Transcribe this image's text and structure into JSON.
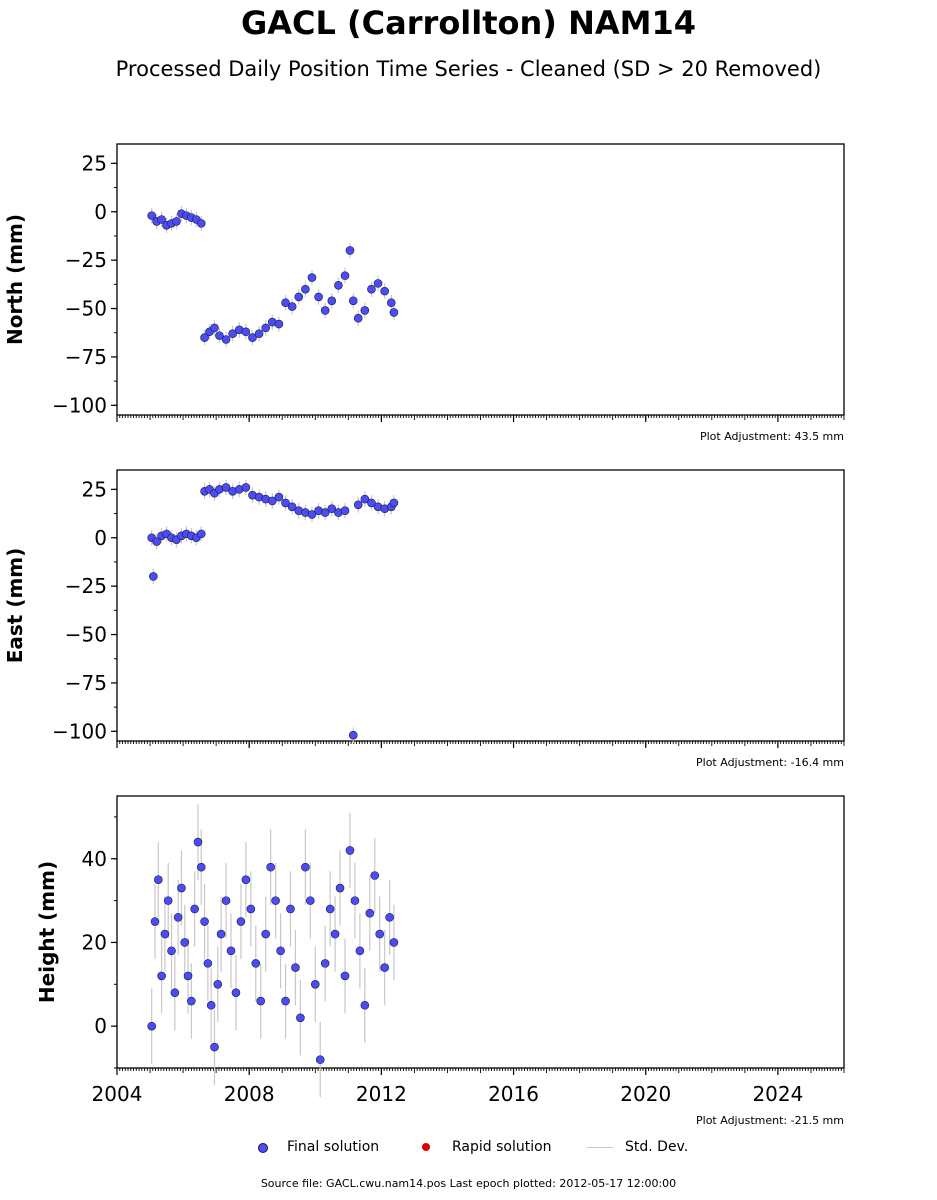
{
  "title": "GACL (Carrollton) NAM14",
  "subtitle": "Processed Daily Position Time Series - Cleaned (SD > 20 Removed)",
  "colors": {
    "final": "#4c4cf5",
    "rapid": "#e00000",
    "stddev": "#c8c8c8",
    "edge": "#1a1a40"
  },
  "legend": {
    "final_label": "Final solution",
    "rapid_label": "Rapid solution",
    "std_label": "Std. Dev."
  },
  "source_text": "Source file: GACL.cwu.nam14.pos  Last epoch plotted: 2012-05-17 12:00:00",
  "chart_data": [
    {
      "type": "scatter",
      "ylabel": "North (mm)",
      "adjustment": "Plot Adjustment: 43.5 mm",
      "xlim": [
        2004,
        2026
      ],
      "ylim": [
        -105,
        35
      ],
      "yticks": [
        25,
        0,
        -25,
        -50,
        -75,
        -100
      ],
      "ytick_labels": [
        "25",
        "0",
        "−25",
        "−50",
        "−75",
        "−100"
      ],
      "xticks": [
        2004,
        2008,
        2012,
        2016,
        2020,
        2024
      ],
      "show_xtick_labels": false,
      "series": [
        {
          "name": "Final solution",
          "x": [
            2005.05,
            2005.2,
            2005.35,
            2005.5,
            2005.65,
            2005.8,
            2005.95,
            2006.1,
            2006.25,
            2006.4,
            2006.55,
            2006.65,
            2006.8,
            2006.95,
            2007.1,
            2007.3,
            2007.5,
            2007.7,
            2007.9,
            2008.1,
            2008.3,
            2008.5,
            2008.7,
            2008.9,
            2009.1,
            2009.3,
            2009.5,
            2009.7,
            2009.9,
            2010.1,
            2010.3,
            2010.5,
            2010.7,
            2010.9,
            2011.05,
            2011.15,
            2011.3,
            2011.5,
            2011.7,
            2011.9,
            2012.1,
            2012.3,
            2012.38
          ],
          "y": [
            -2,
            -5,
            -4,
            -7,
            -6,
            -5,
            -1,
            -2,
            -3,
            -4,
            -6,
            -65,
            -62,
            -60,
            -64,
            -66,
            -63,
            -61,
            -62,
            -65,
            -63,
            -60,
            -57,
            -58,
            -47,
            -49,
            -44,
            -40,
            -34,
            -44,
            -51,
            -46,
            -38,
            -33,
            -20,
            -46,
            -55,
            -51,
            -40,
            -37,
            -41,
            -47,
            -52
          ]
        }
      ]
    },
    {
      "type": "scatter",
      "ylabel": "East (mm)",
      "adjustment": "Plot Adjustment: -16.4 mm",
      "xlim": [
        2004,
        2026
      ],
      "ylim": [
        -105,
        35
      ],
      "yticks": [
        25,
        0,
        -25,
        -50,
        -75,
        -100
      ],
      "ytick_labels": [
        "25",
        "0",
        "−25",
        "−50",
        "−75",
        "−100"
      ],
      "xticks": [
        2004,
        2008,
        2012,
        2016,
        2020,
        2024
      ],
      "show_xtick_labels": false,
      "series": [
        {
          "name": "Final solution",
          "x": [
            2005.05,
            2005.1,
            2005.2,
            2005.35,
            2005.5,
            2005.65,
            2005.8,
            2005.95,
            2006.1,
            2006.25,
            2006.4,
            2006.55,
            2006.65,
            2006.8,
            2006.95,
            2007.1,
            2007.3,
            2007.5,
            2007.7,
            2007.9,
            2008.1,
            2008.3,
            2008.5,
            2008.7,
            2008.9,
            2009.1,
            2009.3,
            2009.5,
            2009.7,
            2009.9,
            2010.1,
            2010.3,
            2010.5,
            2010.7,
            2010.9,
            2011.15,
            2011.3,
            2011.5,
            2011.7,
            2011.9,
            2012.1,
            2012.3,
            2012.38
          ],
          "y": [
            0,
            -20,
            -2,
            1,
            2,
            0,
            -1,
            1,
            2,
            1,
            0,
            2,
            24,
            25,
            23,
            25,
            26,
            24,
            25,
            26,
            22,
            21,
            20,
            19,
            21,
            18,
            16,
            14,
            13,
            12,
            14,
            13,
            15,
            13,
            14,
            -102,
            17,
            20,
            18,
            16,
            15,
            16,
            18
          ]
        }
      ]
    },
    {
      "type": "scatter",
      "ylabel": "Height (mm)",
      "adjustment": "Plot Adjustment: -21.5 mm",
      "xlim": [
        2004,
        2026
      ],
      "ylim": [
        -10,
        55
      ],
      "yticks": [
        40,
        20,
        0
      ],
      "ytick_labels": [
        "40",
        "20",
        "0"
      ],
      "xticks": [
        2004,
        2008,
        2012,
        2016,
        2020,
        2024
      ],
      "xtick_labels": [
        "2004",
        "2008",
        "2012",
        "2016",
        "2020",
        "2024"
      ],
      "show_xtick_labels": true,
      "series": [
        {
          "name": "Final solution",
          "x": [
            2005.05,
            2005.15,
            2005.25,
            2005.35,
            2005.45,
            2005.55,
            2005.65,
            2005.75,
            2005.85,
            2005.95,
            2006.05,
            2006.15,
            2006.25,
            2006.35,
            2006.45,
            2006.55,
            2006.65,
            2006.75,
            2006.85,
            2006.95,
            2007.05,
            2007.15,
            2007.3,
            2007.45,
            2007.6,
            2007.75,
            2007.9,
            2008.05,
            2008.2,
            2008.35,
            2008.5,
            2008.65,
            2008.8,
            2008.95,
            2009.1,
            2009.25,
            2009.4,
            2009.55,
            2009.7,
            2009.85,
            2010.0,
            2010.15,
            2010.3,
            2010.45,
            2010.6,
            2010.75,
            2010.9,
            2011.05,
            2011.2,
            2011.35,
            2011.5,
            2011.65,
            2011.8,
            2011.95,
            2012.1,
            2012.25,
            2012.38
          ],
          "y": [
            0,
            25,
            35,
            12,
            22,
            30,
            18,
            8,
            26,
            33,
            20,
            12,
            6,
            28,
            44,
            38,
            25,
            15,
            5,
            -5,
            10,
            22,
            30,
            18,
            8,
            25,
            35,
            28,
            15,
            6,
            22,
            38,
            30,
            18,
            6,
            28,
            14,
            2,
            38,
            30,
            10,
            -8,
            15,
            28,
            22,
            33,
            12,
            42,
            30,
            18,
            5,
            27,
            36,
            22,
            14,
            26,
            20
          ]
        }
      ]
    }
  ]
}
